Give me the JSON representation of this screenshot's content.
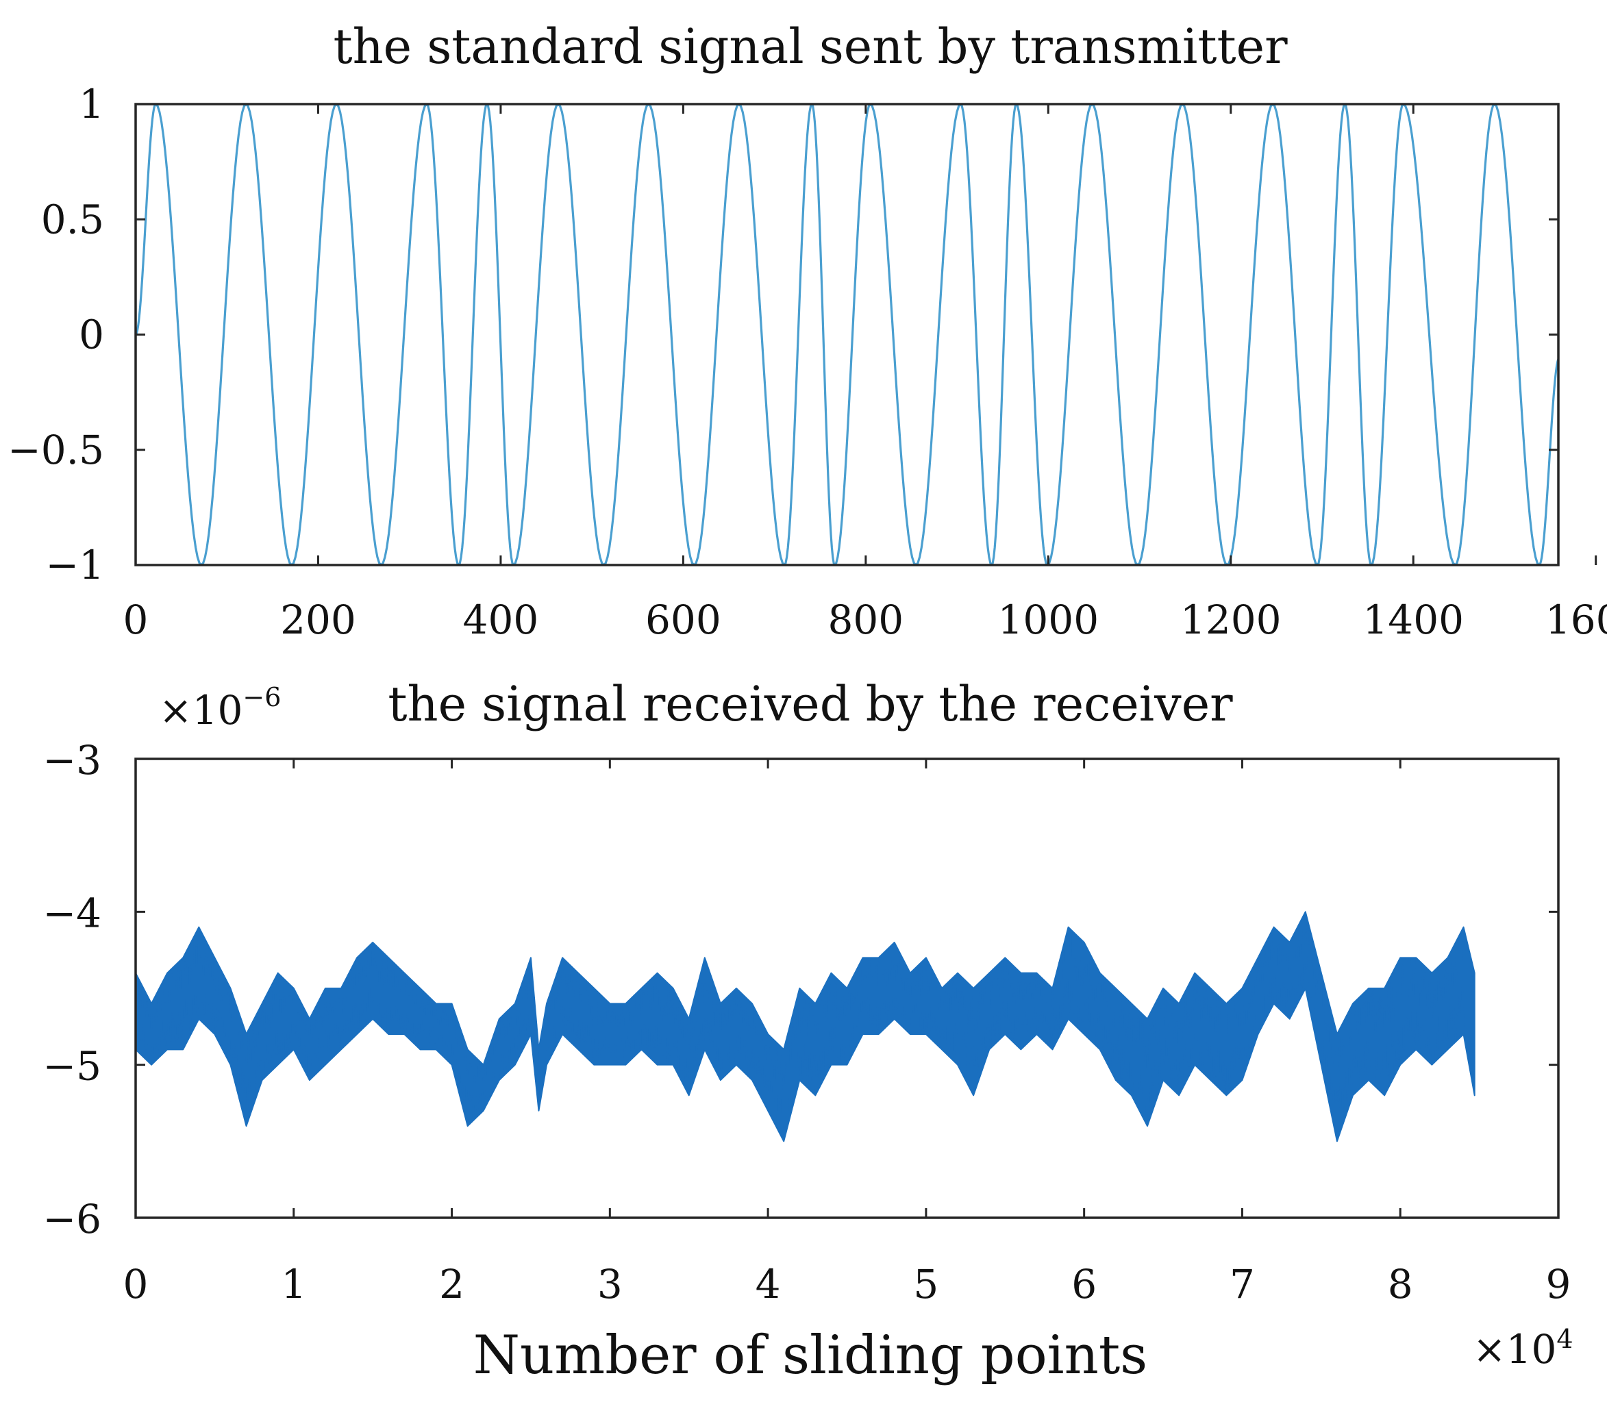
{
  "chart_data": [
    {
      "type": "line",
      "title": "the standard signal sent by transmitter",
      "xlabel": "",
      "ylabel": "",
      "xlim": [
        0,
        1560
      ],
      "ylim": [
        -1,
        1
      ],
      "xticks": [
        0,
        200,
        400,
        600,
        800,
        1000,
        1200,
        1400,
        1600
      ],
      "xtick_labels": [
        "0",
        "200",
        "400",
        "600",
        "800",
        "1000",
        "1200",
        "1400",
        "1600"
      ],
      "yticks": [
        1,
        0.5,
        0,
        -0.5,
        -1
      ],
      "ytick_labels": [
        "1",
        "0.5",
        "0",
        "−0.5",
        "−1"
      ],
      "series": [
        {
          "color": "#4a9fd0",
          "extrema": [
            [
              0,
              0
            ],
            [
              22,
              1
            ],
            [
              72,
              -1
            ],
            [
              121,
              1
            ],
            [
              171,
              -1
            ],
            [
              220,
              1
            ],
            [
              269,
              -1
            ],
            [
              319,
              1
            ],
            [
              354,
              -1
            ],
            [
              385,
              1
            ],
            [
              414,
              -1
            ],
            [
              463,
              1
            ],
            [
              513,
              -1
            ],
            [
              562,
              1
            ],
            [
              612,
              -1
            ],
            [
              661,
              1
            ],
            [
              711,
              -1
            ],
            [
              741,
              1
            ],
            [
              766,
              -1
            ],
            [
              805,
              1
            ],
            [
              855,
              -1
            ],
            [
              904,
              1
            ],
            [
              938,
              -1
            ],
            [
              965,
              1
            ],
            [
              999,
              -1
            ],
            [
              1048,
              1
            ],
            [
              1098,
              -1
            ],
            [
              1147,
              1
            ],
            [
              1196,
              -1
            ],
            [
              1246,
              1
            ],
            [
              1295,
              -1
            ],
            [
              1325,
              1
            ],
            [
              1354,
              -1
            ],
            [
              1389,
              1
            ],
            [
              1446,
              -1
            ],
            [
              1489,
              1
            ],
            [
              1538,
              -1
            ],
            [
              1560,
              -0.1
            ]
          ]
        }
      ],
      "grid": false
    },
    {
      "type": "line",
      "title": "the signal received by the receiver",
      "xlabel": "Number of sliding points",
      "ylabel": "",
      "xlim": [
        0,
        90000
      ],
      "ylim": [
        -6e-06,
        -3e-06
      ],
      "xticks": [
        0,
        10000,
        20000,
        30000,
        40000,
        50000,
        60000,
        70000,
        80000,
        90000
      ],
      "xtick_labels": [
        "0",
        "1",
        "2",
        "3",
        "4",
        "5",
        "6",
        "7",
        "8",
        "9"
      ],
      "yticks": [
        -3e-06,
        -4e-06,
        -5e-06,
        -6e-06
      ],
      "ytick_labels": [
        "−3",
        "−4",
        "−5",
        "−6"
      ],
      "y_multiplier": "×10",
      "y_multiplier_exp": "−6",
      "x_multiplier": "×10",
      "x_multiplier_exp": "4",
      "series": [
        {
          "color": "#1a6fbf",
          "band_top": [
            [
              0,
              -4.4
            ],
            [
              1000,
              -4.6
            ],
            [
              2000,
              -4.4
            ],
            [
              3000,
              -4.3
            ],
            [
              4000,
              -4.1
            ],
            [
              5000,
              -4.3
            ],
            [
              6000,
              -4.5
            ],
            [
              7000,
              -4.8
            ],
            [
              8000,
              -4.6
            ],
            [
              9000,
              -4.4
            ],
            [
              10000,
              -4.5
            ],
            [
              11000,
              -4.7
            ],
            [
              12000,
              -4.5
            ],
            [
              13000,
              -4.5
            ],
            [
              14000,
              -4.3
            ],
            [
              15000,
              -4.2
            ],
            [
              16000,
              -4.3
            ],
            [
              17000,
              -4.4
            ],
            [
              18000,
              -4.5
            ],
            [
              19000,
              -4.6
            ],
            [
              20000,
              -4.6
            ],
            [
              21000,
              -4.9
            ],
            [
              22000,
              -5.0
            ],
            [
              23000,
              -4.7
            ],
            [
              24000,
              -4.6
            ],
            [
              25000,
              -4.3
            ],
            [
              25500,
              -4.9
            ],
            [
              26000,
              -4.6
            ],
            [
              27000,
              -4.3
            ],
            [
              28000,
              -4.4
            ],
            [
              29000,
              -4.5
            ],
            [
              30000,
              -4.6
            ],
            [
              31000,
              -4.6
            ],
            [
              32000,
              -4.5
            ],
            [
              33000,
              -4.4
            ],
            [
              34000,
              -4.5
            ],
            [
              35000,
              -4.7
            ],
            [
              36000,
              -4.3
            ],
            [
              37000,
              -4.6
            ],
            [
              38000,
              -4.5
            ],
            [
              39000,
              -4.6
            ],
            [
              40000,
              -4.8
            ],
            [
              41000,
              -4.9
            ],
            [
              42000,
              -4.5
            ],
            [
              43000,
              -4.6
            ],
            [
              44000,
              -4.4
            ],
            [
              45000,
              -4.5
            ],
            [
              46000,
              -4.3
            ],
            [
              47000,
              -4.3
            ],
            [
              48000,
              -4.2
            ],
            [
              49000,
              -4.4
            ],
            [
              50000,
              -4.3
            ],
            [
              51000,
              -4.5
            ],
            [
              52000,
              -4.4
            ],
            [
              53000,
              -4.5
            ],
            [
              54000,
              -4.4
            ],
            [
              55000,
              -4.3
            ],
            [
              56000,
              -4.4
            ],
            [
              57000,
              -4.4
            ],
            [
              58000,
              -4.5
            ],
            [
              59000,
              -4.1
            ],
            [
              60000,
              -4.2
            ],
            [
              61000,
              -4.4
            ],
            [
              62000,
              -4.5
            ],
            [
              63000,
              -4.6
            ],
            [
              64000,
              -4.7
            ],
            [
              65000,
              -4.5
            ],
            [
              66000,
              -4.6
            ],
            [
              67000,
              -4.4
            ],
            [
              68000,
              -4.5
            ],
            [
              69000,
              -4.6
            ],
            [
              70000,
              -4.5
            ],
            [
              71000,
              -4.3
            ],
            [
              72000,
              -4.1
            ],
            [
              73000,
              -4.2
            ],
            [
              74000,
              -4.0
            ],
            [
              75000,
              -4.4
            ],
            [
              76000,
              -4.8
            ],
            [
              77000,
              -4.6
            ],
            [
              78000,
              -4.5
            ],
            [
              79000,
              -4.5
            ],
            [
              80000,
              -4.3
            ],
            [
              81000,
              -4.3
            ],
            [
              82000,
              -4.4
            ],
            [
              83000,
              -4.3
            ],
            [
              84000,
              -4.1
            ],
            [
              84700,
              -4.4
            ]
          ],
          "band_bottom": [
            [
              0,
              -4.9
            ],
            [
              1000,
              -5.0
            ],
            [
              2000,
              -4.9
            ],
            [
              3000,
              -4.9
            ],
            [
              4000,
              -4.7
            ],
            [
              5000,
              -4.8
            ],
            [
              6000,
              -5.0
            ],
            [
              7000,
              -5.4
            ],
            [
              8000,
              -5.1
            ],
            [
              9000,
              -5.0
            ],
            [
              10000,
              -4.9
            ],
            [
              11000,
              -5.1
            ],
            [
              12000,
              -5.0
            ],
            [
              13000,
              -4.9
            ],
            [
              14000,
              -4.8
            ],
            [
              15000,
              -4.7
            ],
            [
              16000,
              -4.8
            ],
            [
              17000,
              -4.8
            ],
            [
              18000,
              -4.9
            ],
            [
              19000,
              -4.9
            ],
            [
              20000,
              -5.0
            ],
            [
              21000,
              -5.4
            ],
            [
              22000,
              -5.3
            ],
            [
              23000,
              -5.1
            ],
            [
              24000,
              -5.0
            ],
            [
              25000,
              -4.8
            ],
            [
              25500,
              -5.3
            ],
            [
              26000,
              -5.0
            ],
            [
              27000,
              -4.8
            ],
            [
              28000,
              -4.9
            ],
            [
              29000,
              -5.0
            ],
            [
              30000,
              -5.0
            ],
            [
              31000,
              -5.0
            ],
            [
              32000,
              -4.9
            ],
            [
              33000,
              -5.0
            ],
            [
              34000,
              -5.0
            ],
            [
              35000,
              -5.2
            ],
            [
              36000,
              -4.9
            ],
            [
              37000,
              -5.1
            ],
            [
              38000,
              -5.0
            ],
            [
              39000,
              -5.1
            ],
            [
              40000,
              -5.3
            ],
            [
              41000,
              -5.5
            ],
            [
              42000,
              -5.1
            ],
            [
              43000,
              -5.2
            ],
            [
              44000,
              -5.0
            ],
            [
              45000,
              -5.0
            ],
            [
              46000,
              -4.8
            ],
            [
              47000,
              -4.8
            ],
            [
              48000,
              -4.7
            ],
            [
              49000,
              -4.8
            ],
            [
              50000,
              -4.8
            ],
            [
              51000,
              -4.9
            ],
            [
              52000,
              -5.0
            ],
            [
              53000,
              -5.2
            ],
            [
              54000,
              -4.9
            ],
            [
              55000,
              -4.8
            ],
            [
              56000,
              -4.9
            ],
            [
              57000,
              -4.8
            ],
            [
              58000,
              -4.9
            ],
            [
              59000,
              -4.7
            ],
            [
              60000,
              -4.8
            ],
            [
              61000,
              -4.9
            ],
            [
              62000,
              -5.1
            ],
            [
              63000,
              -5.2
            ],
            [
              64000,
              -5.4
            ],
            [
              65000,
              -5.1
            ],
            [
              66000,
              -5.2
            ],
            [
              67000,
              -5.0
            ],
            [
              68000,
              -5.1
            ],
            [
              69000,
              -5.2
            ],
            [
              70000,
              -5.1
            ],
            [
              71000,
              -4.8
            ],
            [
              72000,
              -4.6
            ],
            [
              73000,
              -4.7
            ],
            [
              74000,
              -4.5
            ],
            [
              75000,
              -5.0
            ],
            [
              76000,
              -5.5
            ],
            [
              77000,
              -5.2
            ],
            [
              78000,
              -5.1
            ],
            [
              79000,
              -5.2
            ],
            [
              80000,
              -5.0
            ],
            [
              81000,
              -4.9
            ],
            [
              82000,
              -5.0
            ],
            [
              83000,
              -4.9
            ],
            [
              84000,
              -4.8
            ],
            [
              84700,
              -5.2
            ]
          ]
        }
      ],
      "grid": false
    }
  ]
}
